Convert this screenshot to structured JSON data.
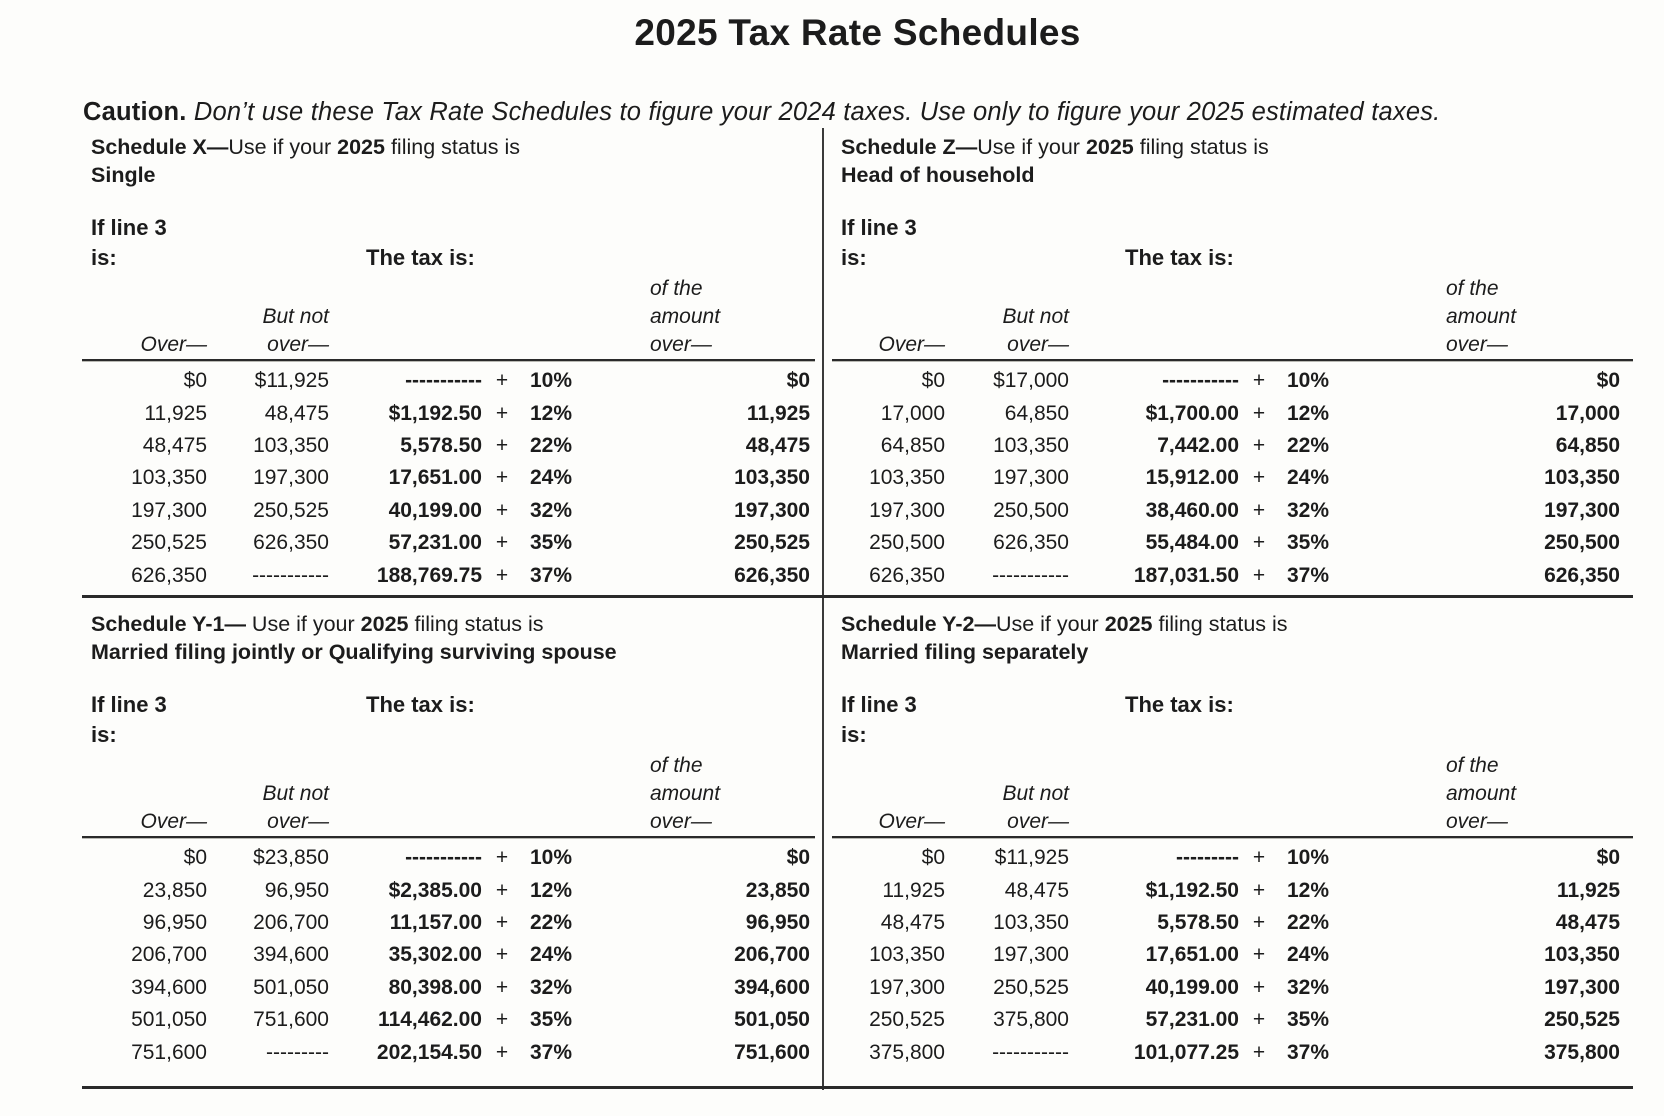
{
  "page": {
    "title": "2025 Tax Rate Schedules",
    "caution_label": "Caution.",
    "caution_text": " Don’t use these Tax Rate Schedules to figure your 2024 taxes. Use only to figure your 2025 estimated taxes."
  },
  "labels": {
    "if_line_1": "If line 3",
    "if_line_2": "is:",
    "tax_is": "The tax is:",
    "over": "Over—",
    "but_not_1": "But not",
    "but_not_2": "over—",
    "of_amount_1": "of the",
    "of_amount_2": "amount",
    "of_amount_3": "over—",
    "plus": "+"
  },
  "schedules": [
    {
      "heading_bold": "Schedule X—",
      "heading_text": "Use if your ",
      "heading_year": "2025",
      "heading_tail": " filing status is",
      "status": "Single",
      "rows": [
        [
          "$0",
          "$11,925",
          "-----------",
          "10%",
          "$0"
        ],
        [
          "11,925",
          "48,475",
          "$1,192.50",
          "12%",
          "11,925"
        ],
        [
          "48,475",
          "103,350",
          "5,578.50",
          "22%",
          "48,475"
        ],
        [
          "103,350",
          "197,300",
          "17,651.00",
          "24%",
          "103,350"
        ],
        [
          "197,300",
          "250,525",
          "40,199.00",
          "32%",
          "197,300"
        ],
        [
          "250,525",
          "626,350",
          "57,231.00",
          "35%",
          "250,525"
        ],
        [
          "626,350",
          "-----------",
          "188,769.75",
          "37%",
          "626,350"
        ]
      ]
    },
    {
      "heading_bold": "Schedule Z—",
      "heading_text": "Use if your ",
      "heading_year": "2025",
      "heading_tail": " filing status is",
      "status": "Head of household",
      "rows": [
        [
          "$0",
          "$17,000",
          "-----------",
          "10%",
          "$0"
        ],
        [
          "17,000",
          "64,850",
          "$1,700.00",
          "12%",
          "17,000"
        ],
        [
          "64,850",
          "103,350",
          "7,442.00",
          "22%",
          "64,850"
        ],
        [
          "103,350",
          "197,300",
          "15,912.00",
          "24%",
          "103,350"
        ],
        [
          "197,300",
          "250,500",
          "38,460.00",
          "32%",
          "197,300"
        ],
        [
          "250,500",
          "626,350",
          "55,484.00",
          "35%",
          "250,500"
        ],
        [
          "626,350",
          "-----------",
          "187,031.50",
          "37%",
          "626,350"
        ]
      ]
    },
    {
      "heading_bold": "Schedule Y-1— ",
      "heading_text": "Use if your ",
      "heading_year": "2025",
      "heading_tail": " filing status is",
      "status": "Married filing jointly or Qualifying surviving spouse",
      "rows": [
        [
          "$0",
          "$23,850",
          "-----------",
          "10%",
          "$0"
        ],
        [
          "23,850",
          "96,950",
          "$2,385.00",
          "12%",
          "23,850"
        ],
        [
          "96,950",
          "206,700",
          "11,157.00",
          "22%",
          "96,950"
        ],
        [
          "206,700",
          "394,600",
          "35,302.00",
          "24%",
          "206,700"
        ],
        [
          "394,600",
          "501,050",
          "80,398.00",
          "32%",
          "394,600"
        ],
        [
          "501,050",
          "751,600",
          "114,462.00",
          "35%",
          "501,050"
        ],
        [
          "751,600",
          "---------",
          "202,154.50",
          "37%",
          "751,600"
        ]
      ]
    },
    {
      "heading_bold": "Schedule Y-2—",
      "heading_text": "Use if your ",
      "heading_year": "2025",
      "heading_tail": " filing status is",
      "status": "Married filing separately",
      "rows": [
        [
          "$0",
          "$11,925",
          "---------",
          "10%",
          "$0"
        ],
        [
          "11,925",
          "48,475",
          "$1,192.50",
          "12%",
          "11,925"
        ],
        [
          "48,475",
          "103,350",
          "5,578.50",
          "22%",
          "48,475"
        ],
        [
          "103,350",
          "197,300",
          "17,651.00",
          "24%",
          "103,350"
        ],
        [
          "197,300",
          "250,525",
          "40,199.00",
          "32%",
          "197,300"
        ],
        [
          "250,525",
          "375,800",
          "57,231.00",
          "35%",
          "250,525"
        ],
        [
          "375,800",
          "-----------",
          "101,077.25",
          "37%",
          "375,800"
        ]
      ]
    }
  ]
}
